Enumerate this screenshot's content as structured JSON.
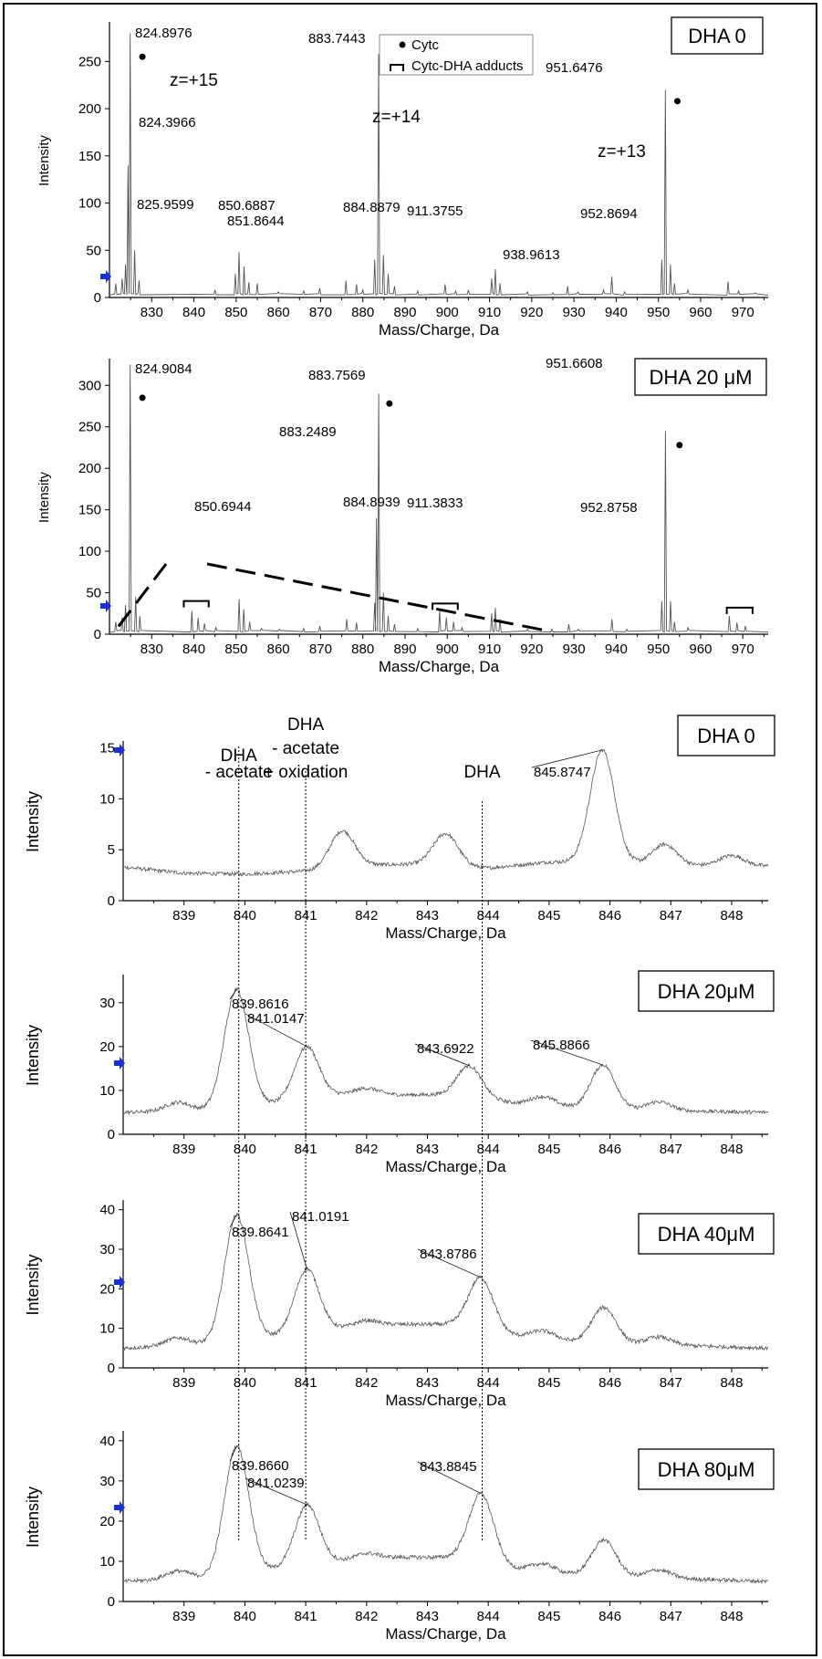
{
  "chart_data": [
    {
      "type": "line",
      "condition_label": "DHA 0",
      "xlabel": "Mass/Charge, Da",
      "ylabel": "Intensity",
      "xlim": [
        820,
        976
      ],
      "ylim": [
        0,
        290
      ],
      "x_ticks": [
        830,
        840,
        850,
        860,
        870,
        880,
        890,
        900,
        910,
        920,
        930,
        940,
        950,
        960,
        970
      ],
      "y_ticks": [
        0,
        50,
        100,
        150,
        200,
        250
      ],
      "baseline": 2.5,
      "legend": [
        {
          "symbol": "dot",
          "label": "Cytc"
        },
        {
          "symbol": "bracket",
          "label": "Cytc-DHA adducts"
        }
      ],
      "annotations": [
        "z=+15",
        "z=+14",
        "z=+13"
      ],
      "peaks": [
        {
          "x": 824.8976,
          "y": 280,
          "label": "824.8976"
        },
        {
          "x": 824.3966,
          "y": 140,
          "label": "824.3966"
        },
        {
          "x": 825.9599,
          "y": 50,
          "label": "825.9599"
        },
        {
          "x": 850.6887,
          "y": 48,
          "label": "850.6887"
        },
        {
          "x": 851.8644,
          "y": 33,
          "label": "851.8644"
        },
        {
          "x": 883.7443,
          "y": 258,
          "label": "883.7443"
        },
        {
          "x": 884.8879,
          "y": 45,
          "label": "884.8879"
        },
        {
          "x": 911.3755,
          "y": 30,
          "label": "911.3755"
        },
        {
          "x": 938.9613,
          "y": 22,
          "label": "938.9613"
        },
        {
          "x": 951.6476,
          "y": 220,
          "label": "951.6476"
        },
        {
          "x": 952.8694,
          "y": 35,
          "label": "952.8694"
        }
      ],
      "cytc_markers": [
        {
          "x": 827.8,
          "y": 255
        },
        {
          "x": 885.9,
          "y": 242
        },
        {
          "x": 954.5,
          "y": 208
        }
      ],
      "minor_peaks": [
        [
          821.5,
          15
        ],
        [
          823.0,
          20
        ],
        [
          823.8,
          35
        ],
        [
          827.0,
          18
        ],
        [
          845.0,
          8
        ],
        [
          849.8,
          25
        ],
        [
          853.0,
          16
        ],
        [
          855.0,
          15
        ],
        [
          860.0,
          6
        ],
        [
          866.0,
          7
        ],
        [
          869.8,
          10
        ],
        [
          876.0,
          18
        ],
        [
          878.5,
          14
        ],
        [
          880.0,
          8
        ],
        [
          882.8,
          40
        ],
        [
          886.0,
          25
        ],
        [
          887.5,
          12
        ],
        [
          893.0,
          7
        ],
        [
          899.5,
          14
        ],
        [
          902.0,
          7
        ],
        [
          905.0,
          8
        ],
        [
          910.5,
          20
        ],
        [
          912.5,
          15
        ],
        [
          919.0,
          6
        ],
        [
          925.0,
          5
        ],
        [
          928.5,
          12
        ],
        [
          931.0,
          6
        ],
        [
          937.0,
          8
        ],
        [
          942.0,
          6
        ],
        [
          950.8,
          40
        ],
        [
          953.8,
          15
        ],
        [
          957.0,
          8
        ],
        [
          966.5,
          17
        ],
        [
          969.0,
          7
        ],
        [
          973.0,
          5
        ]
      ]
    },
    {
      "type": "line",
      "condition_label": "DHA 20 μM",
      "xlabel": "Mass/Charge, Da",
      "ylabel": "Intensity",
      "xlim": [
        820,
        976
      ],
      "ylim": [
        0,
        330
      ],
      "x_ticks": [
        830,
        840,
        850,
        860,
        870,
        880,
        890,
        900,
        910,
        920,
        930,
        940,
        950,
        960,
        970
      ],
      "y_ticks": [
        0,
        50,
        100,
        150,
        200,
        250,
        300
      ],
      "baseline": 2.5,
      "peaks": [
        {
          "x": 824.9084,
          "y": 325,
          "label": "824.9084"
        },
        {
          "x": 850.6944,
          "y": 42,
          "label": "850.6944"
        },
        {
          "x": 883.2489,
          "y": 140,
          "label": "883.2489"
        },
        {
          "x": 883.7569,
          "y": 290,
          "label": "883.7569"
        },
        {
          "x": 884.8939,
          "y": 50,
          "label": "884.8939"
        },
        {
          "x": 911.3833,
          "y": 32,
          "label": "911.3833"
        },
        {
          "x": 951.6608,
          "y": 245,
          "label": "951.6608"
        },
        {
          "x": 952.8758,
          "y": 40,
          "label": "952.8758"
        }
      ],
      "cytc_markers": [
        {
          "x": 827.8,
          "y": 285
        },
        {
          "x": 886.3,
          "y": 278
        },
        {
          "x": 955.0,
          "y": 228
        }
      ],
      "adduct_brackets": [
        {
          "x1": 837.6,
          "x2": 843.5,
          "y": 40
        },
        {
          "x1": 896.5,
          "x2": 902.5,
          "y": 37
        },
        {
          "x1": 966.2,
          "x2": 972.3,
          "y": 32
        }
      ],
      "minor_peaks": [
        [
          821.5,
          15
        ],
        [
          823.0,
          20
        ],
        [
          823.8,
          35
        ],
        [
          826.2,
          45
        ],
        [
          827.2,
          22
        ],
        [
          839.5,
          28
        ],
        [
          841.0,
          20
        ],
        [
          842.5,
          13
        ],
        [
          845.2,
          8
        ],
        [
          851.8,
          30
        ],
        [
          853.2,
          15
        ],
        [
          856.0,
          7
        ],
        [
          860.2,
          6
        ],
        [
          866.0,
          7
        ],
        [
          869.8,
          10
        ],
        [
          876.2,
          18
        ],
        [
          878.5,
          14
        ],
        [
          882.8,
          38
        ],
        [
          886.0,
          22
        ],
        [
          887.5,
          12
        ],
        [
          893.0,
          7
        ],
        [
          898.2,
          28
        ],
        [
          899.8,
          20
        ],
        [
          901.5,
          15
        ],
        [
          903.5,
          8
        ],
        [
          910.5,
          25
        ],
        [
          912.5,
          18
        ],
        [
          919.0,
          6
        ],
        [
          924.8,
          6
        ],
        [
          928.8,
          12
        ],
        [
          931.0,
          6
        ],
        [
          939.0,
          18
        ],
        [
          942.5,
          6
        ],
        [
          950.8,
          40
        ],
        [
          953.8,
          15
        ],
        [
          957.0,
          8
        ],
        [
          966.8,
          22
        ],
        [
          968.6,
          14
        ],
        [
          970.6,
          10
        ]
      ]
    },
    {
      "type": "line",
      "condition_label": "DHA 0",
      "xlabel": "Mass/Charge, Da",
      "ylabel": "Intensity",
      "xlim": [
        838,
        848.6
      ],
      "ylim": [
        0,
        15.5
      ],
      "x_ticks": [
        839,
        840,
        841,
        842,
        843,
        844,
        845,
        846,
        847,
        848
      ],
      "y_ticks": [
        0,
        5,
        10,
        15
      ],
      "annotations": [
        {
          "lines": [
            "DHA",
            "- acetate"
          ],
          "x": 839.9
        },
        {
          "lines": [
            "DHA",
            "- acetate",
            "+ oxidation"
          ],
          "x": 841.0
        },
        {
          "lines": [
            "DHA"
          ],
          "x": 843.9
        }
      ],
      "baseline_points": [
        [
          838.0,
          3.3
        ],
        [
          839.0,
          2.7
        ],
        [
          840.0,
          2.6
        ],
        [
          841.0,
          2.9
        ],
        [
          842.0,
          3.5
        ],
        [
          843.0,
          3.6
        ],
        [
          844.0,
          3.2
        ],
        [
          845.0,
          3.8
        ],
        [
          846.0,
          3.8
        ],
        [
          847.0,
          3.5
        ],
        [
          848.6,
          3.4
        ]
      ],
      "peaks": [
        {
          "x": 841.6,
          "y": 3.6,
          "width": 0.2,
          "label": ""
        },
        {
          "x": 843.3,
          "y": 3.1,
          "width": 0.2,
          "label": ""
        },
        {
          "x": 845.8747,
          "y": 11.0,
          "width": 0.2,
          "label": "845.8747"
        },
        {
          "x": 846.9,
          "y": 2.0,
          "width": 0.2,
          "label": ""
        },
        {
          "x": 848.0,
          "y": 1.0,
          "width": 0.2,
          "label": ""
        }
      ]
    },
    {
      "type": "line",
      "condition_label": "DHA 20μM",
      "xlabel": "Mass/Charge, Da",
      "ylabel": "Intensity",
      "xlim": [
        838,
        848.6
      ],
      "ylim": [
        0,
        36
      ],
      "x_ticks": [
        839,
        840,
        841,
        842,
        843,
        844,
        845,
        846,
        847,
        848
      ],
      "y_ticks": [
        0,
        10,
        20,
        30
      ],
      "baseline_points": [
        [
          838.0,
          5
        ],
        [
          839.5,
          5.5
        ],
        [
          840.5,
          7
        ],
        [
          841.5,
          9
        ],
        [
          842.5,
          9
        ],
        [
          843.5,
          9
        ],
        [
          844.5,
          7
        ],
        [
          845.5,
          6
        ],
        [
          846.5,
          5.5
        ],
        [
          848.6,
          5
        ]
      ],
      "peaks": [
        {
          "x": 838.9,
          "y": 2.0,
          "width": 0.2,
          "label": ""
        },
        {
          "x": 839.8616,
          "y": 27.0,
          "width": 0.2,
          "label": "839.8616"
        },
        {
          "x": 841.0147,
          "y": 12.0,
          "width": 0.2,
          "label": "841.0147"
        },
        {
          "x": 842.0,
          "y": 1.5,
          "width": 0.2,
          "label": ""
        },
        {
          "x": 843.6922,
          "y": 7.0,
          "width": 0.2,
          "label": "843.6922"
        },
        {
          "x": 844.9,
          "y": 2.0,
          "width": 0.2,
          "label": ""
        },
        {
          "x": 845.8866,
          "y": 10.0,
          "width": 0.2,
          "label": "845.8866"
        },
        {
          "x": 846.8,
          "y": 2.0,
          "width": 0.2,
          "label": ""
        }
      ]
    },
    {
      "type": "line",
      "condition_label": "DHA 40μM",
      "xlabel": "Mass/Charge, Da",
      "ylabel": "Intensity",
      "xlim": [
        838,
        848.6
      ],
      "ylim": [
        0,
        42
      ],
      "x_ticks": [
        839,
        840,
        841,
        842,
        843,
        844,
        845,
        846,
        847,
        848
      ],
      "y_ticks": [
        0,
        10,
        20,
        30,
        40
      ],
      "baseline_points": [
        [
          838.0,
          5
        ],
        [
          839.5,
          6
        ],
        [
          840.5,
          8
        ],
        [
          841.5,
          10
        ],
        [
          842.5,
          11
        ],
        [
          843.5,
          11
        ],
        [
          844.5,
          8
        ],
        [
          845.5,
          6.5
        ],
        [
          846.5,
          6
        ],
        [
          848.6,
          5
        ]
      ],
      "peaks": [
        {
          "x": 838.9,
          "y": 2.0,
          "width": 0.2,
          "label": ""
        },
        {
          "x": 839.8641,
          "y": 32.0,
          "width": 0.2,
          "label": "839.8641"
        },
        {
          "x": 841.0191,
          "y": 16.0,
          "width": 0.2,
          "label": "841.0191"
        },
        {
          "x": 842.0,
          "y": 1.5,
          "width": 0.2,
          "label": ""
        },
        {
          "x": 843.8786,
          "y": 13.0,
          "width": 0.2,
          "label": "843.8786"
        },
        {
          "x": 844.9,
          "y": 2.0,
          "width": 0.2,
          "label": ""
        },
        {
          "x": 845.9,
          "y": 9.0,
          "width": 0.2,
          "label": ""
        },
        {
          "x": 846.8,
          "y": 2.0,
          "width": 0.2,
          "label": ""
        }
      ]
    },
    {
      "type": "line",
      "condition_label": "DHA 80μM",
      "xlabel": "Mass/Charge, Da",
      "ylabel": "Intensity",
      "xlim": [
        838,
        848.6
      ],
      "ylim": [
        0,
        42
      ],
      "x_ticks": [
        839,
        840,
        841,
        842,
        843,
        844,
        845,
        846,
        847,
        848
      ],
      "y_ticks": [
        0,
        10,
        20,
        30,
        40
      ],
      "baseline_points": [
        [
          838.0,
          5
        ],
        [
          839.5,
          6
        ],
        [
          840.5,
          8
        ],
        [
          841.5,
          10
        ],
        [
          842.5,
          11
        ],
        [
          843.5,
          11
        ],
        [
          844.5,
          8
        ],
        [
          845.5,
          6.5
        ],
        [
          846.5,
          6
        ],
        [
          848.6,
          5
        ]
      ],
      "peaks": [
        {
          "x": 838.9,
          "y": 2.0,
          "width": 0.2,
          "label": ""
        },
        {
          "x": 839.866,
          "y": 32.0,
          "width": 0.2,
          "label": "839.8660"
        },
        {
          "x": 841.0239,
          "y": 15.0,
          "width": 0.2,
          "label": "841.0239"
        },
        {
          "x": 842.0,
          "y": 1.5,
          "width": 0.2,
          "label": ""
        },
        {
          "x": 843.8845,
          "y": 17.0,
          "width": 0.2,
          "label": "843.8845"
        },
        {
          "x": 844.9,
          "y": 2.0,
          "width": 0.2,
          "label": ""
        },
        {
          "x": 845.9,
          "y": 9.0,
          "width": 0.2,
          "label": ""
        },
        {
          "x": 846.8,
          "y": 2.0,
          "width": 0.2,
          "label": ""
        }
      ]
    }
  ],
  "colors": {
    "trace": "#555555",
    "axis": "#000000",
    "arrow": "#1a2fd6",
    "guide": "#000000"
  }
}
